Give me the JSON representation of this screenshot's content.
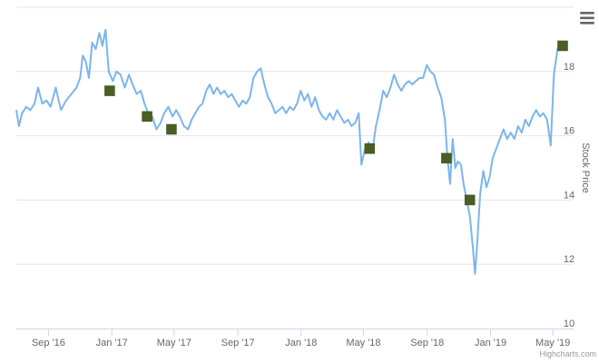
{
  "chart_data": {
    "type": "line",
    "title": "",
    "xlabel": "",
    "ylabel": "Stock Price",
    "ylim": [
      10,
      20
    ],
    "yticks": [
      10,
      12,
      14,
      16,
      18
    ],
    "y_axis_side": "right",
    "xlim": [
      "2016-07-01",
      "2019-06-10"
    ],
    "xticks": [
      {
        "date": "2016-09-01",
        "label": "Sep '16"
      },
      {
        "date": "2017-01-01",
        "label": "Jan '17"
      },
      {
        "date": "2017-05-01",
        "label": "May '17"
      },
      {
        "date": "2017-09-01",
        "label": "Sep '17"
      },
      {
        "date": "2018-01-01",
        "label": "Jan '18"
      },
      {
        "date": "2018-05-01",
        "label": "May '18"
      },
      {
        "date": "2018-09-01",
        "label": "Sep '18"
      },
      {
        "date": "2019-01-01",
        "label": "Jan '19"
      },
      {
        "date": "2019-05-01",
        "label": "May '19"
      }
    ],
    "grid": true,
    "legend": "none",
    "line_color": "#7cb5ec",
    "marker_color": "#4b5e23",
    "series": [
      {
        "name": "",
        "points": [
          [
            "2016-07-01",
            16.8
          ],
          [
            "2016-07-06",
            16.3
          ],
          [
            "2016-07-12",
            16.7
          ],
          [
            "2016-07-20",
            16.9
          ],
          [
            "2016-07-28",
            16.8
          ],
          [
            "2016-08-05",
            17.0
          ],
          [
            "2016-08-12",
            17.5
          ],
          [
            "2016-08-20",
            17.0
          ],
          [
            "2016-08-28",
            17.1
          ],
          [
            "2016-09-05",
            16.9
          ],
          [
            "2016-09-15",
            17.5
          ],
          [
            "2016-09-25",
            16.8
          ],
          [
            "2016-10-05",
            17.1
          ],
          [
            "2016-10-15",
            17.3
          ],
          [
            "2016-10-25",
            17.5
          ],
          [
            "2016-11-01",
            17.8
          ],
          [
            "2016-11-06",
            18.5
          ],
          [
            "2016-11-12",
            18.3
          ],
          [
            "2016-11-18",
            17.8
          ],
          [
            "2016-11-24",
            18.9
          ],
          [
            "2016-12-01",
            18.7
          ],
          [
            "2016-12-08",
            19.2
          ],
          [
            "2016-12-14",
            18.8
          ],
          [
            "2016-12-20",
            19.3
          ],
          [
            "2016-12-26",
            18.0
          ],
          [
            "2017-01-03",
            17.7
          ],
          [
            "2017-01-10",
            18.0
          ],
          [
            "2017-01-18",
            17.9
          ],
          [
            "2017-01-26",
            17.5
          ],
          [
            "2017-02-03",
            17.9
          ],
          [
            "2017-02-10",
            17.6
          ],
          [
            "2017-02-18",
            17.3
          ],
          [
            "2017-02-26",
            17.4
          ],
          [
            "2017-03-05",
            17.0
          ],
          [
            "2017-03-12",
            16.7
          ],
          [
            "2017-03-20",
            16.6
          ],
          [
            "2017-03-28",
            16.2
          ],
          [
            "2017-04-05",
            16.4
          ],
          [
            "2017-04-12",
            16.7
          ],
          [
            "2017-04-20",
            16.9
          ],
          [
            "2017-04-28",
            16.6
          ],
          [
            "2017-05-05",
            16.8
          ],
          [
            "2017-05-12",
            16.6
          ],
          [
            "2017-05-20",
            16.3
          ],
          [
            "2017-05-28",
            16.2
          ],
          [
            "2017-06-04",
            16.5
          ],
          [
            "2017-06-11",
            16.7
          ],
          [
            "2017-06-18",
            16.9
          ],
          [
            "2017-06-25",
            17.0
          ],
          [
            "2017-07-02",
            17.4
          ],
          [
            "2017-07-09",
            17.6
          ],
          [
            "2017-07-16",
            17.3
          ],
          [
            "2017-07-23",
            17.5
          ],
          [
            "2017-07-30",
            17.3
          ],
          [
            "2017-08-06",
            17.4
          ],
          [
            "2017-08-13",
            17.2
          ],
          [
            "2017-08-20",
            17.3
          ],
          [
            "2017-08-27",
            17.1
          ],
          [
            "2017-09-03",
            16.9
          ],
          [
            "2017-09-10",
            17.1
          ],
          [
            "2017-09-17",
            17.0
          ],
          [
            "2017-09-24",
            17.2
          ],
          [
            "2017-10-01",
            17.8
          ],
          [
            "2017-10-08",
            18.0
          ],
          [
            "2017-10-15",
            18.1
          ],
          [
            "2017-10-22",
            17.6
          ],
          [
            "2017-10-29",
            17.2
          ],
          [
            "2017-11-05",
            17.0
          ],
          [
            "2017-11-12",
            16.7
          ],
          [
            "2017-11-19",
            16.8
          ],
          [
            "2017-11-26",
            16.9
          ],
          [
            "2017-12-03",
            16.7
          ],
          [
            "2017-12-10",
            16.9
          ],
          [
            "2017-12-17",
            16.8
          ],
          [
            "2017-12-24",
            17.0
          ],
          [
            "2017-12-31",
            17.4
          ],
          [
            "2018-01-07",
            17.1
          ],
          [
            "2018-01-14",
            17.3
          ],
          [
            "2018-01-21",
            16.9
          ],
          [
            "2018-01-28",
            17.2
          ],
          [
            "2018-02-04",
            16.8
          ],
          [
            "2018-02-11",
            16.6
          ],
          [
            "2018-02-18",
            16.5
          ],
          [
            "2018-02-25",
            16.7
          ],
          [
            "2018-03-04",
            16.5
          ],
          [
            "2018-03-11",
            16.8
          ],
          [
            "2018-03-18",
            16.6
          ],
          [
            "2018-03-25",
            16.4
          ],
          [
            "2018-04-01",
            16.5
          ],
          [
            "2018-04-08",
            16.3
          ],
          [
            "2018-04-15",
            16.4
          ],
          [
            "2018-04-22",
            16.7
          ],
          [
            "2018-04-27",
            15.1
          ],
          [
            "2018-05-04",
            15.6
          ],
          [
            "2018-05-11",
            15.8
          ],
          [
            "2018-05-18",
            15.5
          ],
          [
            "2018-05-25",
            16.3
          ],
          [
            "2018-06-01",
            16.8
          ],
          [
            "2018-06-08",
            17.4
          ],
          [
            "2018-06-15",
            17.2
          ],
          [
            "2018-06-22",
            17.5
          ],
          [
            "2018-06-29",
            17.9
          ],
          [
            "2018-07-06",
            17.6
          ],
          [
            "2018-07-13",
            17.4
          ],
          [
            "2018-07-20",
            17.6
          ],
          [
            "2018-07-27",
            17.7
          ],
          [
            "2018-08-03",
            17.6
          ],
          [
            "2018-08-10",
            17.7
          ],
          [
            "2018-08-17",
            17.8
          ],
          [
            "2018-08-24",
            17.8
          ],
          [
            "2018-08-31",
            18.2
          ],
          [
            "2018-09-07",
            18.0
          ],
          [
            "2018-09-14",
            17.9
          ],
          [
            "2018-09-21",
            17.5
          ],
          [
            "2018-09-28",
            17.2
          ],
          [
            "2018-10-05",
            16.5
          ],
          [
            "2018-10-10",
            15.3
          ],
          [
            "2018-10-15",
            14.5
          ],
          [
            "2018-10-20",
            15.9
          ],
          [
            "2018-10-25",
            15.0
          ],
          [
            "2018-10-30",
            15.2
          ],
          [
            "2018-11-05",
            15.1
          ],
          [
            "2018-11-10",
            14.5
          ],
          [
            "2018-11-16",
            14.0
          ],
          [
            "2018-11-22",
            13.5
          ],
          [
            "2018-11-28",
            12.5
          ],
          [
            "2018-12-02",
            11.7
          ],
          [
            "2018-12-06",
            12.6
          ],
          [
            "2018-12-12",
            14.2
          ],
          [
            "2018-12-18",
            14.9
          ],
          [
            "2018-12-24",
            14.4
          ],
          [
            "2018-12-30",
            14.7
          ],
          [
            "2019-01-05",
            15.3
          ],
          [
            "2019-01-12",
            15.6
          ],
          [
            "2019-01-19",
            15.9
          ],
          [
            "2019-01-26",
            16.2
          ],
          [
            "2019-02-02",
            15.9
          ],
          [
            "2019-02-09",
            16.1
          ],
          [
            "2019-02-16",
            15.9
          ],
          [
            "2019-02-23",
            16.3
          ],
          [
            "2019-03-02",
            16.1
          ],
          [
            "2019-03-09",
            16.5
          ],
          [
            "2019-03-16",
            16.3
          ],
          [
            "2019-03-23",
            16.6
          ],
          [
            "2019-03-30",
            16.8
          ],
          [
            "2019-04-06",
            16.6
          ],
          [
            "2019-04-13",
            16.7
          ],
          [
            "2019-04-20",
            16.5
          ],
          [
            "2019-04-27",
            15.7
          ],
          [
            "2019-05-03",
            17.9
          ],
          [
            "2019-05-10",
            18.7
          ],
          [
            "2019-05-17",
            18.9
          ]
        ]
      }
    ],
    "markers": [
      {
        "x": "2016-12-28",
        "y": 17.4
      },
      {
        "x": "2017-03-10",
        "y": 16.6
      },
      {
        "x": "2017-04-26",
        "y": 16.2
      },
      {
        "x": "2018-05-13",
        "y": 15.6
      },
      {
        "x": "2018-10-08",
        "y": 15.3
      },
      {
        "x": "2018-11-22",
        "y": 14.0
      },
      {
        "x": "2019-05-20",
        "y": 18.8
      }
    ],
    "credits": "Highcharts.com"
  },
  "menu": {
    "icon": "hamburger-menu-icon"
  }
}
